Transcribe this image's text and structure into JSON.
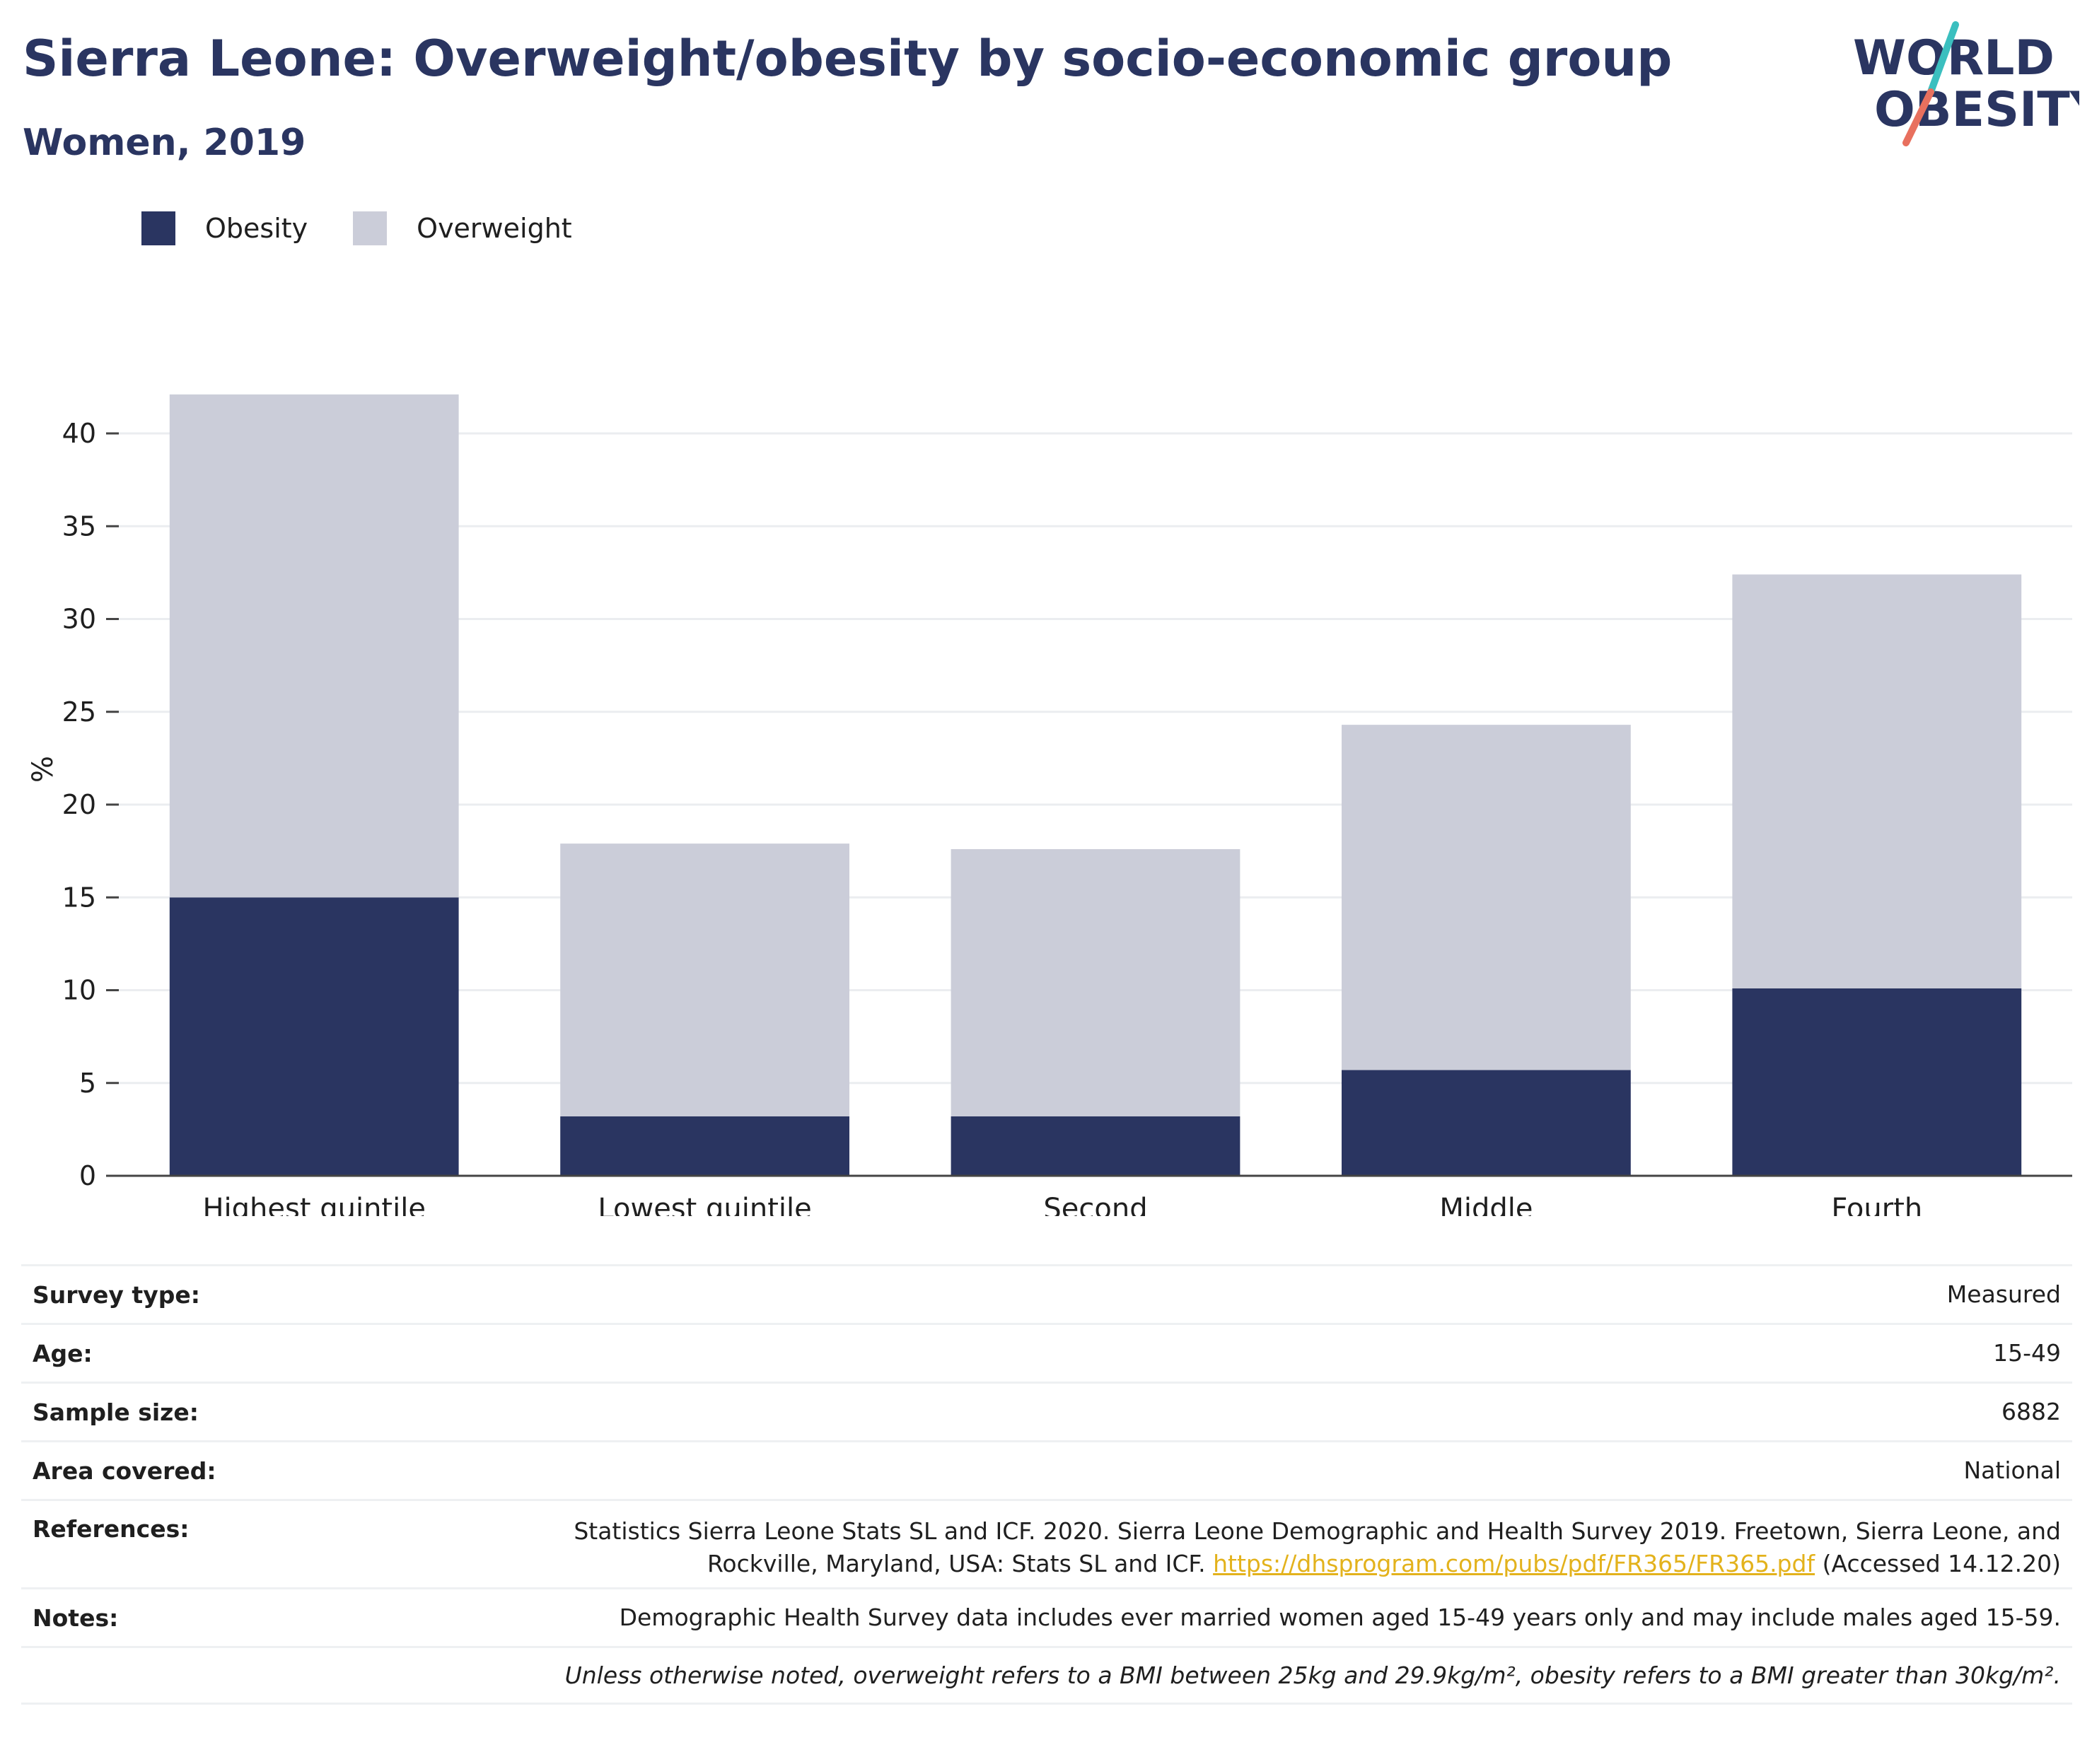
{
  "title": "Sierra Leone: Overweight/obesity by socio-economic group",
  "subtitle": "Women, 2019",
  "logo": {
    "line1": "WORLD",
    "line2": "OBESITY"
  },
  "colors": {
    "obesity": "#2a3561",
    "overweight": "#cbcdd9",
    "accent_teal": "#3bbfbf",
    "accent_coral": "#e8705e",
    "link": "#e3b21c"
  },
  "legend": [
    {
      "label": "Obesity",
      "color": "#2a3561"
    },
    {
      "label": "Overweight",
      "color": "#cbcdd9"
    }
  ],
  "chart_data": {
    "type": "bar",
    "stacked": true,
    "categories": [
      "Highest quintile",
      "Lowest quintile",
      "Second",
      "Middle",
      "Fourth"
    ],
    "series": [
      {
        "name": "Obesity",
        "values": [
          15.0,
          3.2,
          3.2,
          5.7,
          10.1
        ]
      },
      {
        "name": "Overweight",
        "values": [
          27.1,
          14.7,
          14.4,
          18.6,
          22.3
        ]
      }
    ],
    "ylabel": "%",
    "ylim": [
      0,
      42
    ],
    "yticks": [
      0,
      5,
      10,
      15,
      20,
      25,
      30,
      35,
      40
    ],
    "grid": true,
    "legend_position": "top-left"
  },
  "meta": {
    "survey_type": {
      "label": "Survey type:",
      "value": "Measured"
    },
    "age": {
      "label": "Age:",
      "value": "15-49"
    },
    "sample_size": {
      "label": "Sample size:",
      "value": "6882"
    },
    "area": {
      "label": "Area covered:",
      "value": "National"
    },
    "references": {
      "label": "References:",
      "text1": "Statistics Sierra Leone Stats SL and ICF. 2020. Sierra Leone Demographic and Health Survey 2019. Freetown, Sierra Leone, and",
      "text2": "Rockville, Maryland, USA: Stats SL and ICF.",
      "link": "https://dhsprogram.com/pubs/pdf/FR365/FR365.pdf",
      "accessed": "(Accessed 14.12.20)"
    },
    "notes": {
      "label": "Notes:",
      "value": "Demographic Health Survey data includes ever married women aged 15-49 years only and may include males aged 15-59."
    },
    "definition": "Unless otherwise noted, overweight refers to a BMI between 25kg and 29.9kg/m², obesity refers to a BMI greater than 30kg/m²."
  }
}
